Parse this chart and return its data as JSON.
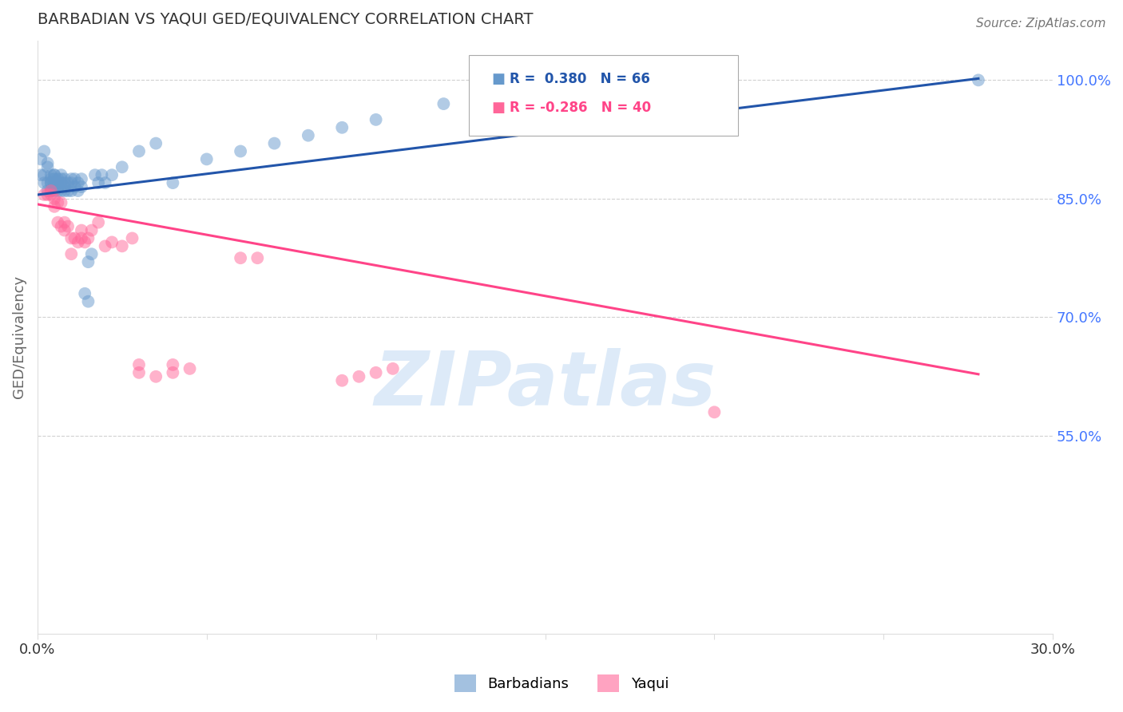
{
  "title": "BARBADIAN VS YAQUI GED/EQUIVALENCY CORRELATION CHART",
  "source": "Source: ZipAtlas.com",
  "ylabel": "GED/Equivalency",
  "xlim": [
    0.0,
    0.3
  ],
  "ylim": [
    0.3,
    1.05
  ],
  "xticks": [
    0.0,
    0.05,
    0.1,
    0.15,
    0.2,
    0.25,
    0.3
  ],
  "xticklabels": [
    "0.0%",
    "",
    "",
    "",
    "",
    "",
    "30.0%"
  ],
  "right_yticks": [
    0.55,
    0.7,
    0.85,
    1.0
  ],
  "right_yticklabels": [
    "55.0%",
    "70.0%",
    "85.0%",
    "100.0%"
  ],
  "barbadian_color": "#6699CC",
  "yaqui_color": "#FF6699",
  "barbadian_line_color": "#2255AA",
  "yaqui_line_color": "#FF4488",
  "legend_r_barbadian": "0.380",
  "legend_n_barbadian": "66",
  "legend_r_yaqui": "-0.286",
  "legend_n_yaqui": "40",
  "watermark": "ZIPatlas",
  "watermark_color": "#AACCEE",
  "background_color": "#FFFFFF",
  "grid_color": "#CCCCCC",
  "title_color": "#333333",
  "right_axis_color": "#4477FF",
  "barbadian_x": [
    0.001,
    0.001,
    0.002,
    0.002,
    0.002,
    0.003,
    0.003,
    0.003,
    0.003,
    0.004,
    0.004,
    0.004,
    0.004,
    0.004,
    0.005,
    0.005,
    0.005,
    0.005,
    0.005,
    0.005,
    0.006,
    0.006,
    0.006,
    0.006,
    0.007,
    0.007,
    0.007,
    0.007,
    0.008,
    0.008,
    0.008,
    0.008,
    0.009,
    0.009,
    0.01,
    0.01,
    0.01,
    0.011,
    0.011,
    0.012,
    0.012,
    0.013,
    0.013,
    0.014,
    0.015,
    0.015,
    0.016,
    0.017,
    0.018,
    0.019,
    0.02,
    0.022,
    0.025,
    0.03,
    0.035,
    0.04,
    0.05,
    0.06,
    0.07,
    0.08,
    0.09,
    0.1,
    0.12,
    0.15,
    0.2,
    0.278
  ],
  "barbadian_y": [
    0.88,
    0.9,
    0.88,
    0.87,
    0.91,
    0.89,
    0.87,
    0.86,
    0.895,
    0.87,
    0.875,
    0.88,
    0.86,
    0.87,
    0.88,
    0.875,
    0.86,
    0.87,
    0.865,
    0.88,
    0.87,
    0.875,
    0.86,
    0.865,
    0.875,
    0.86,
    0.87,
    0.88,
    0.86,
    0.87,
    0.865,
    0.875,
    0.87,
    0.86,
    0.875,
    0.87,
    0.86,
    0.875,
    0.865,
    0.87,
    0.86,
    0.875,
    0.865,
    0.73,
    0.77,
    0.72,
    0.78,
    0.88,
    0.87,
    0.88,
    0.87,
    0.88,
    0.89,
    0.91,
    0.92,
    0.87,
    0.9,
    0.91,
    0.92,
    0.93,
    0.94,
    0.95,
    0.97,
    0.96,
    0.98,
    1.0
  ],
  "yaqui_x": [
    0.002,
    0.003,
    0.004,
    0.004,
    0.005,
    0.005,
    0.006,
    0.006,
    0.007,
    0.007,
    0.008,
    0.008,
    0.009,
    0.01,
    0.01,
    0.011,
    0.012,
    0.013,
    0.013,
    0.014,
    0.015,
    0.016,
    0.018,
    0.02,
    0.022,
    0.025,
    0.028,
    0.03,
    0.035,
    0.04,
    0.06,
    0.065,
    0.09,
    0.095,
    0.1,
    0.105,
    0.03,
    0.04,
    0.045,
    0.2
  ],
  "yaqui_y": [
    0.855,
    0.855,
    0.86,
    0.855,
    0.85,
    0.84,
    0.845,
    0.82,
    0.845,
    0.815,
    0.82,
    0.81,
    0.815,
    0.8,
    0.78,
    0.8,
    0.795,
    0.81,
    0.8,
    0.795,
    0.8,
    0.81,
    0.82,
    0.79,
    0.795,
    0.79,
    0.8,
    0.63,
    0.625,
    0.63,
    0.775,
    0.775,
    0.62,
    0.625,
    0.63,
    0.635,
    0.64,
    0.64,
    0.635,
    0.58
  ],
  "barbadian_trend_x": [
    0.0,
    0.278
  ],
  "barbadian_trend_y": [
    0.855,
    1.002
  ],
  "yaqui_trend_x": [
    0.0,
    0.278
  ],
  "yaqui_trend_y": [
    0.843,
    0.628
  ]
}
